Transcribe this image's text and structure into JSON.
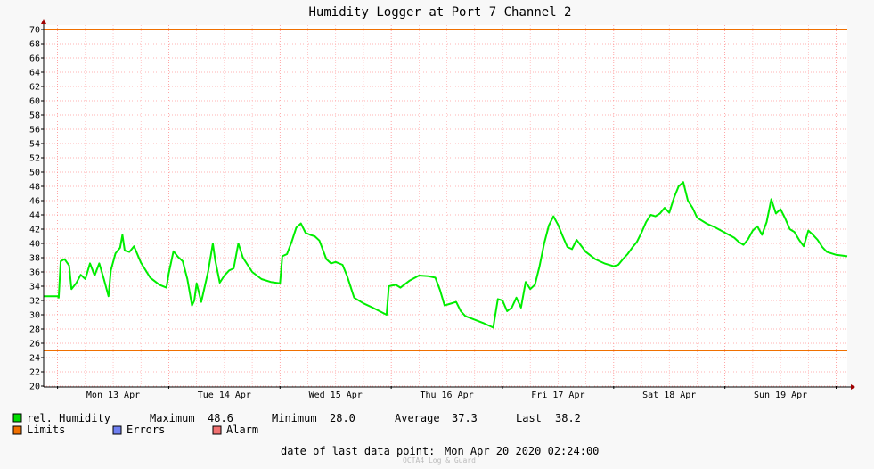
{
  "chart_data": {
    "type": "line",
    "title": "Humidity Logger at Port 7 Channel 2",
    "ylim": [
      20,
      70
    ],
    "y_ticks": [
      "20",
      "22",
      "24",
      "26",
      "28",
      "30",
      "32",
      "34",
      "36",
      "38",
      "40",
      "42",
      "44",
      "46",
      "48",
      "50",
      "52",
      "54",
      "56",
      "58",
      "60",
      "62",
      "64",
      "66",
      "68",
      "70"
    ],
    "x_range": [
      "2020-04-12 21:00",
      "2020-04-20 02:24"
    ],
    "x_ticks": [
      {
        "label": "Mon 13 Apr",
        "center": "2020-04-13 12:00"
      },
      {
        "label": "Tue 14 Apr",
        "center": "2020-04-14 12:00"
      },
      {
        "label": "Wed 15 Apr",
        "center": "2020-04-15 12:00"
      },
      {
        "label": "Thu 16 Apr",
        "center": "2020-04-16 12:00"
      },
      {
        "label": "Fri 17 Apr",
        "center": "2020-04-17 12:00"
      },
      {
        "label": "Sat 18 Apr",
        "center": "2020-04-18 12:00"
      },
      {
        "label": "Sun 19 Apr",
        "center": "2020-04-19 12:00"
      }
    ],
    "grid": true,
    "limits": [
      70,
      25
    ],
    "series": [
      {
        "name": "rel. Humidity",
        "color": "#00ee00",
        "points": [
          [
            "2020-04-12 21:00",
            32.6
          ],
          [
            "2020-04-13 00:00",
            32.6
          ],
          [
            "2020-04-13 00:15",
            32.4
          ],
          [
            "2020-04-13 00:40",
            37.5
          ],
          [
            "2020-04-13 01:30",
            37.8
          ],
          [
            "2020-04-13 02:30",
            36.9
          ],
          [
            "2020-04-13 03:00",
            33.6
          ],
          [
            "2020-04-13 04:00",
            34.4
          ],
          [
            "2020-04-13 05:00",
            35.6
          ],
          [
            "2020-04-13 06:00",
            35.0
          ],
          [
            "2020-04-13 07:00",
            37.2
          ],
          [
            "2020-04-13 08:00",
            35.5
          ],
          [
            "2020-04-13 09:00",
            37.2
          ],
          [
            "2020-04-13 10:00",
            35.0
          ],
          [
            "2020-04-13 11:00",
            32.6
          ],
          [
            "2020-04-13 11:30",
            36.2
          ],
          [
            "2020-04-13 12:30",
            38.6
          ],
          [
            "2020-04-13 13:30",
            39.4
          ],
          [
            "2020-04-13 14:00",
            41.2
          ],
          [
            "2020-04-13 14:30",
            39.0
          ],
          [
            "2020-04-13 15:30",
            38.8
          ],
          [
            "2020-04-13 16:30",
            39.6
          ],
          [
            "2020-04-13 18:00",
            37.3
          ],
          [
            "2020-04-13 20:00",
            35.2
          ],
          [
            "2020-04-13 22:00",
            34.2
          ],
          [
            "2020-04-13 23:30",
            33.8
          ],
          [
            "2020-04-14 00:00",
            35.8
          ],
          [
            "2020-04-14 01:00",
            38.9
          ],
          [
            "2020-04-14 02:00",
            38.1
          ],
          [
            "2020-04-14 03:00",
            37.5
          ],
          [
            "2020-04-14 04:00",
            35.0
          ],
          [
            "2020-04-14 05:00",
            31.3
          ],
          [
            "2020-04-14 05:30",
            32.0
          ],
          [
            "2020-04-14 06:00",
            34.4
          ],
          [
            "2020-04-14 07:00",
            31.8
          ],
          [
            "2020-04-14 08:30",
            36.1
          ],
          [
            "2020-04-14 09:30",
            40.0
          ],
          [
            "2020-04-14 10:00",
            37.7
          ],
          [
            "2020-04-14 11:00",
            34.5
          ],
          [
            "2020-04-14 12:00",
            35.5
          ],
          [
            "2020-04-14 13:00",
            36.2
          ],
          [
            "2020-04-14 14:00",
            36.5
          ],
          [
            "2020-04-14 15:00",
            40.0
          ],
          [
            "2020-04-14 16:00",
            38.0
          ],
          [
            "2020-04-14 18:00",
            36.0
          ],
          [
            "2020-04-14 20:00",
            35.0
          ],
          [
            "2020-04-14 22:00",
            34.6
          ],
          [
            "2020-04-15 00:00",
            34.4
          ],
          [
            "2020-04-15 00:30",
            38.2
          ],
          [
            "2020-04-15 01:30",
            38.5
          ],
          [
            "2020-04-15 02:30",
            40.2
          ],
          [
            "2020-04-15 03:30",
            42.2
          ],
          [
            "2020-04-15 04:30",
            42.8
          ],
          [
            "2020-04-15 05:30",
            41.5
          ],
          [
            "2020-04-15 06:30",
            41.2
          ],
          [
            "2020-04-15 07:30",
            41.0
          ],
          [
            "2020-04-15 08:30",
            40.4
          ],
          [
            "2020-04-15 10:00",
            37.8
          ],
          [
            "2020-04-15 11:00",
            37.2
          ],
          [
            "2020-04-15 12:00",
            37.4
          ],
          [
            "2020-04-15 13:30",
            37.0
          ],
          [
            "2020-04-15 14:30",
            35.4
          ],
          [
            "2020-04-15 16:00",
            32.4
          ],
          [
            "2020-04-15 18:00",
            31.6
          ],
          [
            "2020-04-15 20:00",
            31.0
          ],
          [
            "2020-04-15 23:00",
            30.0
          ],
          [
            "2020-04-15 23:30",
            34.0
          ],
          [
            "2020-04-16 01:00",
            34.2
          ],
          [
            "2020-04-16 02:00",
            33.8
          ],
          [
            "2020-04-16 04:00",
            34.8
          ],
          [
            "2020-04-16 06:00",
            35.5
          ],
          [
            "2020-04-16 08:00",
            35.4
          ],
          [
            "2020-04-16 09:30",
            35.2
          ],
          [
            "2020-04-16 10:30",
            33.5
          ],
          [
            "2020-04-16 11:30",
            31.3
          ],
          [
            "2020-04-16 12:30",
            31.5
          ],
          [
            "2020-04-16 14:00",
            31.8
          ],
          [
            "2020-04-16 15:00",
            30.5
          ],
          [
            "2020-04-16 16:00",
            29.8
          ],
          [
            "2020-04-16 18:00",
            29.3
          ],
          [
            "2020-04-16 20:00",
            28.8
          ],
          [
            "2020-04-16 22:00",
            28.2
          ],
          [
            "2020-04-16 23:00",
            32.2
          ],
          [
            "2020-04-17 00:00",
            32.0
          ],
          [
            "2020-04-17 01:00",
            30.5
          ],
          [
            "2020-04-17 02:00",
            31.0
          ],
          [
            "2020-04-17 03:00",
            32.4
          ],
          [
            "2020-04-17 04:00",
            31.0
          ],
          [
            "2020-04-17 05:00",
            34.6
          ],
          [
            "2020-04-17 06:00",
            33.6
          ],
          [
            "2020-04-17 07:00",
            34.2
          ],
          [
            "2020-04-17 08:00",
            36.8
          ],
          [
            "2020-04-17 09:00",
            40.0
          ],
          [
            "2020-04-17 10:00",
            42.5
          ],
          [
            "2020-04-17 11:00",
            43.8
          ],
          [
            "2020-04-17 12:00",
            42.6
          ],
          [
            "2020-04-17 13:00",
            41.0
          ],
          [
            "2020-04-17 14:00",
            39.5
          ],
          [
            "2020-04-17 15:00",
            39.2
          ],
          [
            "2020-04-17 16:00",
            40.5
          ],
          [
            "2020-04-17 18:00",
            38.8
          ],
          [
            "2020-04-17 20:00",
            37.8
          ],
          [
            "2020-04-17 22:00",
            37.2
          ],
          [
            "2020-04-18 00:00",
            36.8
          ],
          [
            "2020-04-18 01:00",
            37.0
          ],
          [
            "2020-04-18 02:00",
            37.8
          ],
          [
            "2020-04-18 03:00",
            38.5
          ],
          [
            "2020-04-18 04:00",
            39.4
          ],
          [
            "2020-04-18 05:00",
            40.2
          ],
          [
            "2020-04-18 06:00",
            41.5
          ],
          [
            "2020-04-18 07:00",
            43.0
          ],
          [
            "2020-04-18 08:00",
            44.0
          ],
          [
            "2020-04-18 09:00",
            43.8
          ],
          [
            "2020-04-18 10:00",
            44.2
          ],
          [
            "2020-04-18 11:00",
            45.0
          ],
          [
            "2020-04-18 12:00",
            44.3
          ],
          [
            "2020-04-18 13:00",
            46.4
          ],
          [
            "2020-04-18 14:00",
            48.0
          ],
          [
            "2020-04-18 15:00",
            48.6
          ],
          [
            "2020-04-18 16:00",
            46.0
          ],
          [
            "2020-04-18 17:00",
            45.0
          ],
          [
            "2020-04-18 18:00",
            43.6
          ],
          [
            "2020-04-18 20:00",
            42.8
          ],
          [
            "2020-04-18 22:00",
            42.2
          ],
          [
            "2020-04-19 00:00",
            41.5
          ],
          [
            "2020-04-19 02:00",
            40.8
          ],
          [
            "2020-04-19 03:00",
            40.2
          ],
          [
            "2020-04-19 04:00",
            39.8
          ],
          [
            "2020-04-19 05:00",
            40.6
          ],
          [
            "2020-04-19 06:00",
            41.8
          ],
          [
            "2020-04-19 07:00",
            42.4
          ],
          [
            "2020-04-19 08:00",
            41.2
          ],
          [
            "2020-04-19 09:00",
            43.0
          ],
          [
            "2020-04-19 10:00",
            46.2
          ],
          [
            "2020-04-19 11:00",
            44.2
          ],
          [
            "2020-04-19 12:00",
            44.8
          ],
          [
            "2020-04-19 13:00",
            43.5
          ],
          [
            "2020-04-19 14:00",
            42.0
          ],
          [
            "2020-04-19 15:00",
            41.6
          ],
          [
            "2020-04-19 16:00",
            40.5
          ],
          [
            "2020-04-19 17:00",
            39.6
          ],
          [
            "2020-04-19 18:00",
            41.8
          ],
          [
            "2020-04-19 19:00",
            41.2
          ],
          [
            "2020-04-19 20:00",
            40.5
          ],
          [
            "2020-04-19 21:00",
            39.5
          ],
          [
            "2020-04-19 22:00",
            38.8
          ],
          [
            "2020-04-20 00:00",
            38.4
          ],
          [
            "2020-04-20 02:24",
            38.2
          ]
        ]
      }
    ]
  },
  "legend": {
    "humidity_label": "rel. Humidity",
    "humidity_color": "#00dd00",
    "max_label": "Maximum",
    "max_value": "48.6",
    "min_label": "Minimum",
    "min_value": "28.0",
    "avg_label": "Average",
    "avg_value": "37.3",
    "last_label": "Last",
    "last_value": "38.2",
    "limits_label": "Limits",
    "limits_color": "#f07000",
    "errors_label": "Errors",
    "errors_color": "#6f7ff0",
    "alarm_label": "Alarm",
    "alarm_color": "#f07070"
  },
  "footer": {
    "last_point_label": "date of last data point:",
    "last_point_value": "Mon Apr 20 2020 02:24:00",
    "credit": "OCTA4 Log & Guard"
  }
}
